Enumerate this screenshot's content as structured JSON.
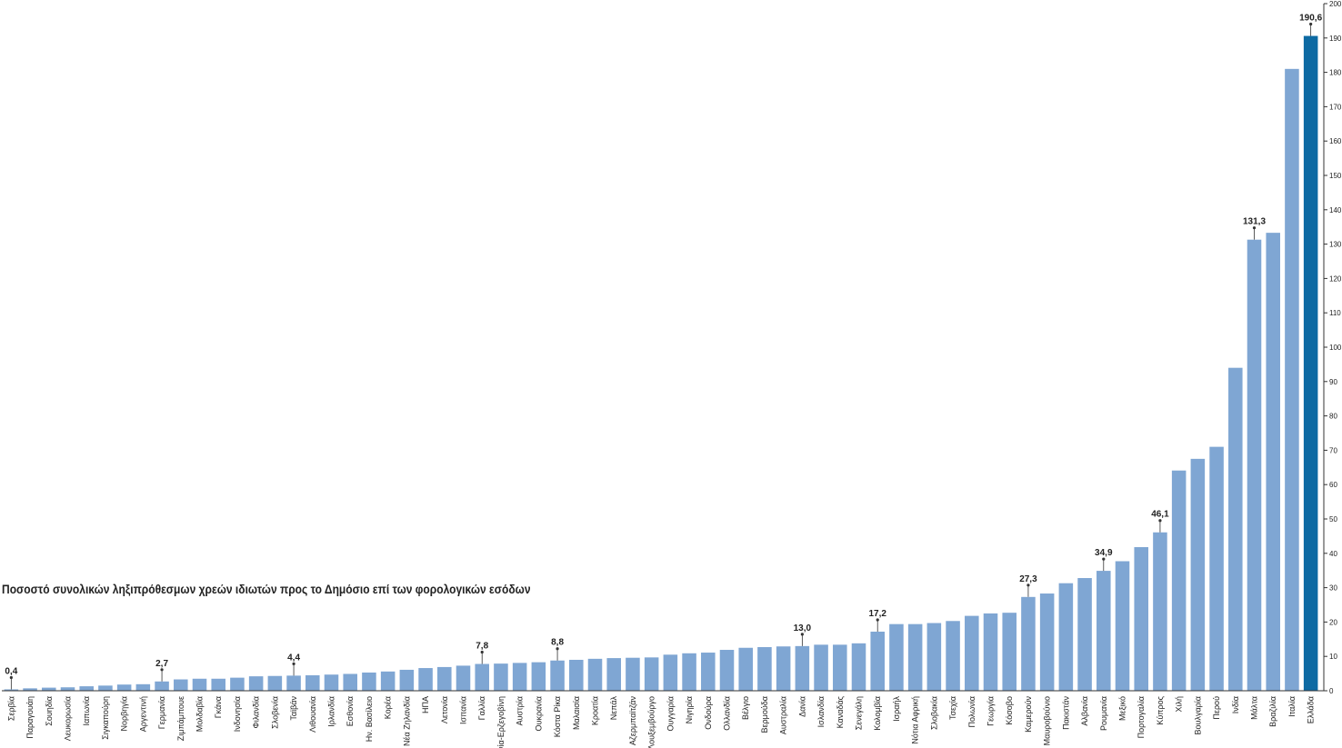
{
  "colors": {
    "bar": "#7fa6d3",
    "highlight_bar": "#0d6aa3",
    "axis": "#333333",
    "label": "#222222"
  },
  "chart_data": {
    "type": "bar",
    "title": "Ποσοστό συνολικών ληξιπρόθεσμων χρεών ιδιωτών προς το Δημόσιο επί των φορολογικών εσόδων",
    "categories": [
      "Σερβία",
      "Παραγουάη",
      "Σουηδία",
      "Λευκορωσία",
      "Ιαπωνία",
      "Σιγκαπούρη",
      "Νορβηγία",
      "Αργεντινή",
      "Γερμανία",
      "Ζιμπάμπουε",
      "Μολδαβία",
      "Γκάνα",
      "Ινδονησία",
      "Φιλανδία",
      "Σλοβενία",
      "Ταϊβάν",
      "Λιθουανία",
      "Ιρλανδία",
      "Εσθονία",
      "Ην. Βασίλειο",
      "Κορέα",
      "Νέα Ζηλανδία",
      "ΗΠΑ",
      "Λετονία",
      "Ισπανία",
      "Γαλλία",
      "Βοσνία-Ερζεγοβίνη",
      "Αυστρία",
      "Ουκρανία",
      "Κόστα Ρίκα",
      "Μαλαισία",
      "Κροατία",
      "Νεπάλ",
      "Αζερμπαϊτζάν",
      "Λουξεμβούργο",
      "Ουγγαρία",
      "Νιγηρία",
      "Ονδούρα",
      "Ολλανδία",
      "Βέλγιο",
      "Βερμούδα",
      "Αυστραλία",
      "Δανία",
      "Ισλανδία",
      "Καναδάς",
      "Σενεγάλη",
      "Κολομβία",
      "Ισραήλ",
      "Νότια Αφρική",
      "Σλοβακία",
      "Τσεχία",
      "Πολωνία",
      "Γεωργία",
      "Κόσοβο",
      "Καμερούν",
      "Μαυροβούνιο",
      "Πακιστάν",
      "Αλβανία",
      "Ρουμανία",
      "Μεξικό",
      "Πορτογαλία",
      "Κύπρος",
      "Χιλή",
      "Βουλγαρία",
      "Περού",
      "Ινδία",
      "Μάλτα",
      "Βραζιλία",
      "Ιταλία",
      "Ελλάδα"
    ],
    "values": [
      0.4,
      0.7,
      0.9,
      1.0,
      1.3,
      1.5,
      1.8,
      1.9,
      2.7,
      3.3,
      3.5,
      3.5,
      3.8,
      4.2,
      4.3,
      4.4,
      4.5,
      4.7,
      4.9,
      5.3,
      5.6,
      6.1,
      6.6,
      6.9,
      7.3,
      7.8,
      7.9,
      8.1,
      8.3,
      8.8,
      9.0,
      9.3,
      9.5,
      9.6,
      9.7,
      10.5,
      10.9,
      11.1,
      11.9,
      12.5,
      12.7,
      12.9,
      13.0,
      13.4,
      13.4,
      13.8,
      17.2,
      19.4,
      19.4,
      19.7,
      20.3,
      21.8,
      22.5,
      22.7,
      27.3,
      28.3,
      31.3,
      32.8,
      34.9,
      37.7,
      41.8,
      46.1,
      64.1,
      67.5,
      71.0,
      94.0,
      131.3,
      133.3,
      181.0,
      190.6
    ],
    "data_labels": [
      {
        "category": "Σερβία",
        "text": "0,4"
      },
      {
        "category": "Γερμανία",
        "text": "2,7"
      },
      {
        "category": "Ταϊβάν",
        "text": "4,4"
      },
      {
        "category": "Γαλλία",
        "text": "7,8"
      },
      {
        "category": "Κόστα Ρίκα",
        "text": "8,8"
      },
      {
        "category": "Δανία",
        "text": "13,0"
      },
      {
        "category": "Κολομβία",
        "text": "17,2"
      },
      {
        "category": "Καμερούν",
        "text": "27,3"
      },
      {
        "category": "Ρουμανία",
        "text": "34,9"
      },
      {
        "category": "Κύπρος",
        "text": "46,1"
      },
      {
        "category": "Μάλτα",
        "text": "131,3"
      },
      {
        "category": "Ελλάδα",
        "text": "190,6"
      }
    ],
    "highlight_category": "Ελλάδα",
    "ylim": [
      0,
      200
    ],
    "yticks": [
      0,
      10,
      20,
      30,
      40,
      50,
      60,
      70,
      80,
      90,
      100,
      110,
      120,
      130,
      140,
      150,
      160,
      170,
      180,
      190,
      200
    ],
    "xlabel": "",
    "ylabel": "",
    "y_axis_side": "right",
    "grid": false,
    "legend": false
  }
}
